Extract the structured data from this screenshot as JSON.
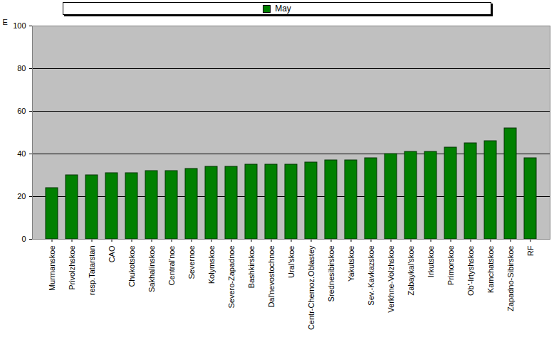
{
  "chart_data": {
    "type": "bar",
    "categories": [
      "Murmanskoe",
      "Privolzhskoe",
      "resp.Tatarstan",
      "CAO",
      "Chukotskoe",
      "Sakhalinskoe",
      "Central'noe",
      "Severnoe",
      "Kolymskoe",
      "Severo-Zapadnoe",
      "Bashkirskoe",
      "Dal'nevostochnoe",
      "Ural'skoe",
      "Centr-Chernoz.Oblastey",
      "Srednesibirskoe",
      "Yakutskoe",
      "Sev.-Kavkazskoe",
      "Verkhne-Volzhskoe",
      "Zabaykal'skoe",
      "Irkutskoe",
      "Primorskoe",
      "Ob'-Irtyshskoe",
      "Kamchatskoe",
      "Zapadno-Sibirskoe",
      "RF"
    ],
    "series": [
      {
        "name": "May",
        "color": "#008000",
        "values": [
          24,
          30,
          30,
          31,
          31,
          32,
          32,
          33,
          34,
          34,
          35,
          35,
          35,
          36,
          37,
          37,
          38,
          40,
          41,
          41,
          43,
          45,
          46,
          52,
          38
        ]
      }
    ],
    "y_label": "E",
    "ylim": [
      0,
      100
    ],
    "yticks": [
      0,
      20,
      40,
      60,
      80,
      100
    ],
    "grid": true,
    "legend": "top"
  }
}
